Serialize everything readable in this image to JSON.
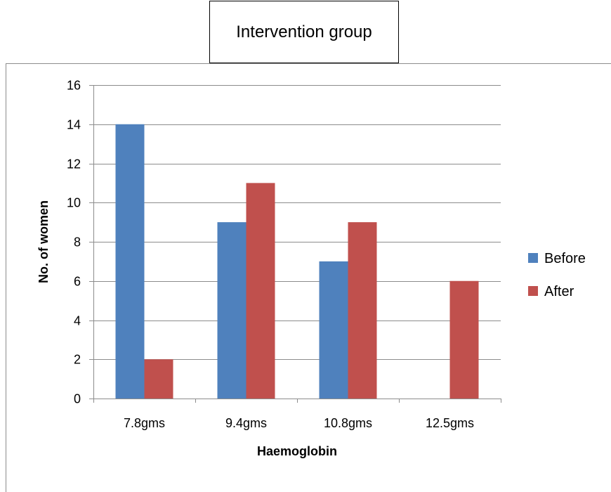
{
  "title": "Intervention group",
  "chart_data": {
    "type": "bar",
    "categories": [
      "7.8gms",
      "9.4gms",
      "10.8gms",
      "12.5gms"
    ],
    "series": [
      {
        "name": "Before",
        "values": [
          14,
          9,
          7,
          0
        ],
        "color": "#4f81bd"
      },
      {
        "name": "After",
        "values": [
          2,
          11,
          9,
          6
        ],
        "color": "#c0504d"
      }
    ],
    "xlabel": "Haemoglobin",
    "ylabel": "No. of women",
    "ylim": [
      0,
      16
    ],
    "yticks": [
      0,
      2,
      4,
      6,
      8,
      10,
      12,
      14,
      16
    ],
    "grid": true,
    "legend": "right"
  }
}
